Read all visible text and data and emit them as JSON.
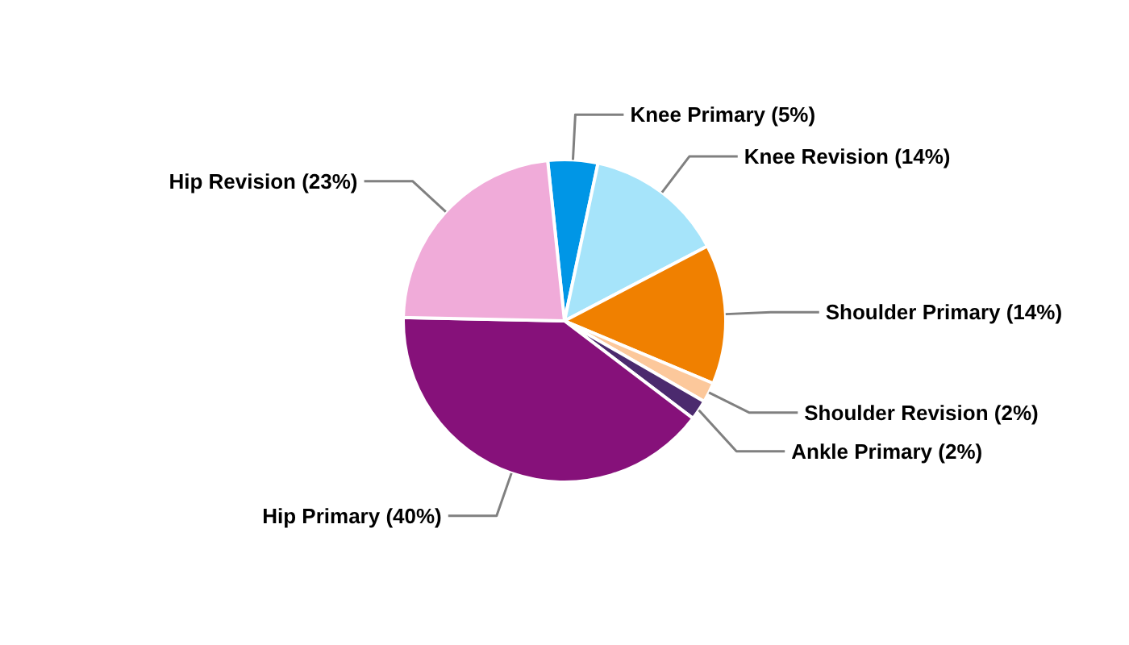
{
  "chart_data": {
    "type": "pie",
    "categories": [
      "Knee Primary (5%)",
      "Knee Revision (14%)",
      "Shoulder Primary (14%)",
      "Shoulder Revision (2%)",
      "Ankle Primary (2%)",
      "Hip Primary (40%)",
      "Hip Revision (23%)"
    ],
    "values": [
      5,
      14,
      14,
      2,
      2,
      40,
      23
    ],
    "colors": [
      "#0096e6",
      "#a6e4fa",
      "#f08000",
      "#fcc89b",
      "#4b2a6e",
      "#86117a",
      "#f0abd9"
    ]
  }
}
